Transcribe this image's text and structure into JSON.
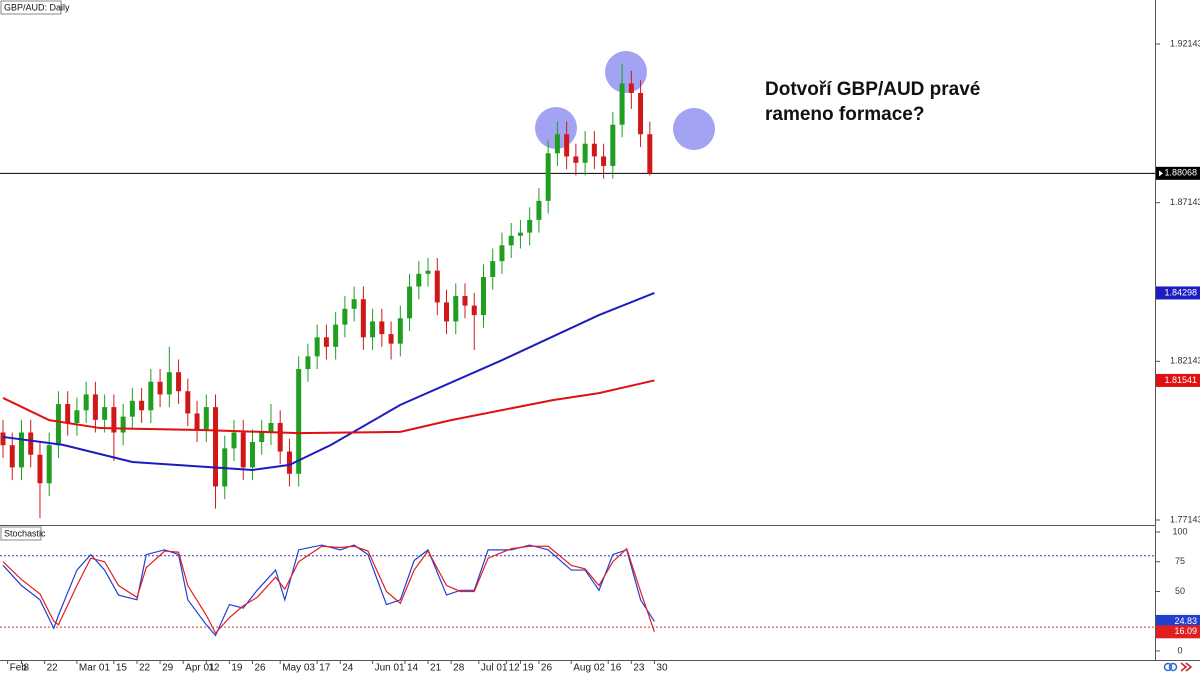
{
  "chart_data": {
    "type": "candlestick",
    "title": "GBP/AUD: Daily",
    "annotation": [
      "Dotvoří GBP/AUD pravé",
      "rameno formace?"
    ],
    "up_color": "#1f9e1f",
    "down_color": "#d01818",
    "x": [
      0,
      2,
      4,
      6,
      8,
      10,
      12,
      14,
      16,
      18,
      20,
      22,
      24,
      26,
      28,
      30,
      32,
      34,
      36,
      38,
      40,
      42,
      44,
      46,
      48,
      50,
      52,
      54,
      56,
      58,
      60,
      62,
      64,
      66,
      68,
      70,
      72,
      74,
      76,
      78,
      80,
      82,
      84,
      86,
      88,
      90,
      92,
      94,
      96,
      98,
      100,
      102,
      104,
      106,
      108,
      110,
      112,
      114,
      116,
      118,
      120,
      122,
      124,
      126,
      128,
      130,
      132,
      134,
      136,
      138,
      140
    ],
    "open": [
      1.799,
      1.795,
      1.788,
      1.799,
      1.792,
      1.783,
      1.795,
      1.808,
      1.802,
      1.806,
      1.811,
      1.803,
      1.807,
      1.799,
      1.804,
      1.809,
      1.806,
      1.815,
      1.811,
      1.818,
      1.812,
      1.805,
      1.8,
      1.807,
      1.782,
      1.794,
      1.799,
      1.788,
      1.796,
      1.799,
      1.802,
      1.793,
      1.786,
      1.819,
      1.823,
      1.829,
      1.826,
      1.833,
      1.838,
      1.841,
      1.829,
      1.834,
      1.83,
      1.827,
      1.835,
      1.845,
      1.849,
      1.85,
      1.84,
      1.834,
      1.842,
      1.839,
      1.836,
      1.848,
      1.853,
      1.858,
      1.861,
      1.862,
      1.866,
      1.872,
      1.887,
      1.893,
      1.886,
      1.884,
      1.89,
      1.886,
      1.883,
      1.896,
      1.909,
      1.906,
      1.893
    ],
    "high": [
      1.803,
      1.799,
      1.803,
      1.803,
      1.796,
      1.799,
      1.812,
      1.812,
      1.81,
      1.815,
      1.815,
      1.811,
      1.811,
      1.808,
      1.813,
      1.813,
      1.819,
      1.819,
      1.826,
      1.822,
      1.816,
      1.809,
      1.811,
      1.811,
      1.798,
      1.803,
      1.803,
      1.8,
      1.803,
      1.808,
      1.806,
      1.797,
      1.823,
      1.827,
      1.833,
      1.833,
      1.837,
      1.842,
      1.845,
      1.845,
      1.838,
      1.838,
      1.834,
      1.839,
      1.849,
      1.853,
      1.854,
      1.854,
      1.844,
      1.846,
      1.846,
      1.843,
      1.852,
      1.857,
      1.862,
      1.865,
      1.866,
      1.87,
      1.876,
      1.891,
      1.897,
      1.897,
      1.89,
      1.894,
      1.894,
      1.89,
      1.9,
      1.915,
      1.913,
      1.91,
      1.897
    ],
    "low": [
      1.791,
      1.784,
      1.784,
      1.788,
      1.772,
      1.779,
      1.791,
      1.798,
      1.798,
      1.802,
      1.799,
      1.799,
      1.79,
      1.795,
      1.8,
      1.802,
      1.802,
      1.807,
      1.807,
      1.808,
      1.801,
      1.796,
      1.796,
      1.775,
      1.778,
      1.79,
      1.784,
      1.784,
      1.792,
      1.795,
      1.789,
      1.782,
      1.782,
      1.815,
      1.819,
      1.822,
      1.822,
      1.829,
      1.834,
      1.825,
      1.825,
      1.826,
      1.822,
      1.823,
      1.831,
      1.841,
      1.845,
      1.836,
      1.83,
      1.83,
      1.835,
      1.825,
      1.832,
      1.844,
      1.849,
      1.854,
      1.857,
      1.858,
      1.862,
      1.868,
      1.883,
      1.882,
      1.88,
      1.88,
      1.882,
      1.879,
      1.879,
      1.892,
      1.901,
      1.889,
      1.88
    ],
    "close": [
      1.795,
      1.788,
      1.799,
      1.792,
      1.783,
      1.795,
      1.808,
      1.802,
      1.806,
      1.811,
      1.803,
      1.807,
      1.799,
      1.804,
      1.809,
      1.806,
      1.815,
      1.811,
      1.818,
      1.812,
      1.805,
      1.8,
      1.807,
      1.782,
      1.794,
      1.799,
      1.788,
      1.796,
      1.799,
      1.802,
      1.793,
      1.786,
      1.819,
      1.823,
      1.829,
      1.826,
      1.833,
      1.838,
      1.841,
      1.829,
      1.834,
      1.83,
      1.827,
      1.835,
      1.845,
      1.849,
      1.85,
      1.84,
      1.834,
      1.842,
      1.839,
      1.836,
      1.848,
      1.853,
      1.858,
      1.861,
      1.862,
      1.866,
      1.872,
      1.887,
      1.893,
      1.886,
      1.884,
      1.89,
      1.886,
      1.883,
      1.896,
      1.909,
      1.906,
      1.893,
      1.8807
    ],
    "last_price": 1.88068,
    "moving_averages": [
      {
        "color": "#1c1cc0",
        "x": [
          0,
          13,
          28,
          54,
          62,
          71,
          86,
          108,
          129,
          141
        ],
        "values": [
          1.7976,
          1.7951,
          1.7897,
          1.7872,
          1.7888,
          1.7951,
          1.8077,
          1.8218,
          1.836,
          1.84298
        ]
      },
      {
        "color": "#e01010",
        "x": [
          0,
          10,
          21,
          43,
          64,
          86,
          97,
          119,
          129,
          141
        ],
        "values": [
          1.8099,
          1.8029,
          1.8004,
          1.7998,
          1.7988,
          1.7992,
          1.8029,
          1.8092,
          1.8114,
          1.81541
        ]
      }
    ],
    "xlim": [
      -0.65,
      249.35
    ],
    "xticks": [
      {
        "value": 1,
        "label": "Feb"
      },
      {
        "value": 4,
        "label": "8"
      },
      {
        "value": 9,
        "label": "22"
      },
      {
        "value": 16,
        "label": "Mar 01"
      },
      {
        "value": 24,
        "label": "15"
      },
      {
        "value": 29,
        "label": "22"
      },
      {
        "value": 34,
        "label": "29"
      },
      {
        "value": 39,
        "label": "Apr 01"
      },
      {
        "value": 44,
        "label": "12"
      },
      {
        "value": 49,
        "label": "19"
      },
      {
        "value": 54,
        "label": "26"
      },
      {
        "value": 60,
        "label": "May 03"
      },
      {
        "value": 68,
        "label": "17"
      },
      {
        "value": 73,
        "label": "24"
      },
      {
        "value": 80,
        "label": "Jun 01"
      },
      {
        "value": 87,
        "label": "14"
      },
      {
        "value": 92,
        "label": "21"
      },
      {
        "value": 97,
        "label": "28"
      },
      {
        "value": 103,
        "label": "Jul 01"
      },
      {
        "value": 109,
        "label": "12"
      },
      {
        "value": 112,
        "label": "19"
      },
      {
        "value": 116,
        "label": "26"
      },
      {
        "value": 123,
        "label": "Aug 02"
      },
      {
        "value": 131,
        "label": "16"
      },
      {
        "value": 136,
        "label": "23"
      },
      {
        "value": 141,
        "label": "30"
      }
    ],
    "ylim": [
      1.76985,
      1.9353
    ],
    "yticks": [
      1.77143,
      1.82143,
      1.87143,
      1.92143
    ],
    "indicator": {
      "title": "Stochastic",
      "ylim": [
        -7.6,
        104.2
      ],
      "yticks": [
        0,
        25,
        50,
        75,
        100
      ],
      "levels": [
        20,
        80
      ],
      "level_colors": [
        "#e03030",
        "#3030c0"
      ],
      "series": [
        {
          "color": "#2040d0",
          "x": [
            0,
            4,
            8,
            11,
            12,
            16,
            19,
            22,
            25,
            29,
            31,
            35,
            38,
            40,
            44,
            46,
            49,
            52,
            55,
            59,
            61,
            64,
            69,
            73,
            76,
            79,
            83,
            86,
            89,
            92,
            96,
            99,
            102,
            105,
            110,
            114,
            118,
            123,
            126,
            129,
            132,
            135,
            138,
            141
          ],
          "values": [
            72,
            55,
            43,
            19,
            30,
            68,
            81,
            68,
            47,
            43,
            81,
            85,
            81,
            43,
            22,
            13,
            39,
            36,
            51,
            68,
            43,
            85,
            89,
            85,
            89,
            81,
            39,
            43,
            76,
            85,
            47,
            51,
            51,
            85,
            85,
            89,
            85,
            68,
            68,
            51,
            81,
            85,
            43,
            24.83
          ]
        },
        {
          "color": "#e02020",
          "x": [
            0,
            4,
            8,
            11,
            12,
            16,
            19,
            22,
            25,
            29,
            31,
            35,
            38,
            40,
            44,
            46,
            49,
            52,
            55,
            59,
            61,
            64,
            69,
            73,
            76,
            79,
            83,
            86,
            89,
            92,
            96,
            99,
            102,
            105,
            110,
            114,
            118,
            123,
            126,
            129,
            132,
            135,
            138,
            141
          ],
          "values": [
            75,
            60,
            48,
            25,
            22,
            55,
            78,
            75,
            55,
            45,
            70,
            84,
            83,
            55,
            30,
            15,
            28,
            38,
            45,
            62,
            52,
            75,
            88,
            87,
            88,
            84,
            50,
            40,
            68,
            84,
            55,
            50,
            50,
            78,
            86,
            88,
            88,
            72,
            69,
            55,
            75,
            86,
            50,
            16.09
          ]
        }
      ]
    }
  }
}
